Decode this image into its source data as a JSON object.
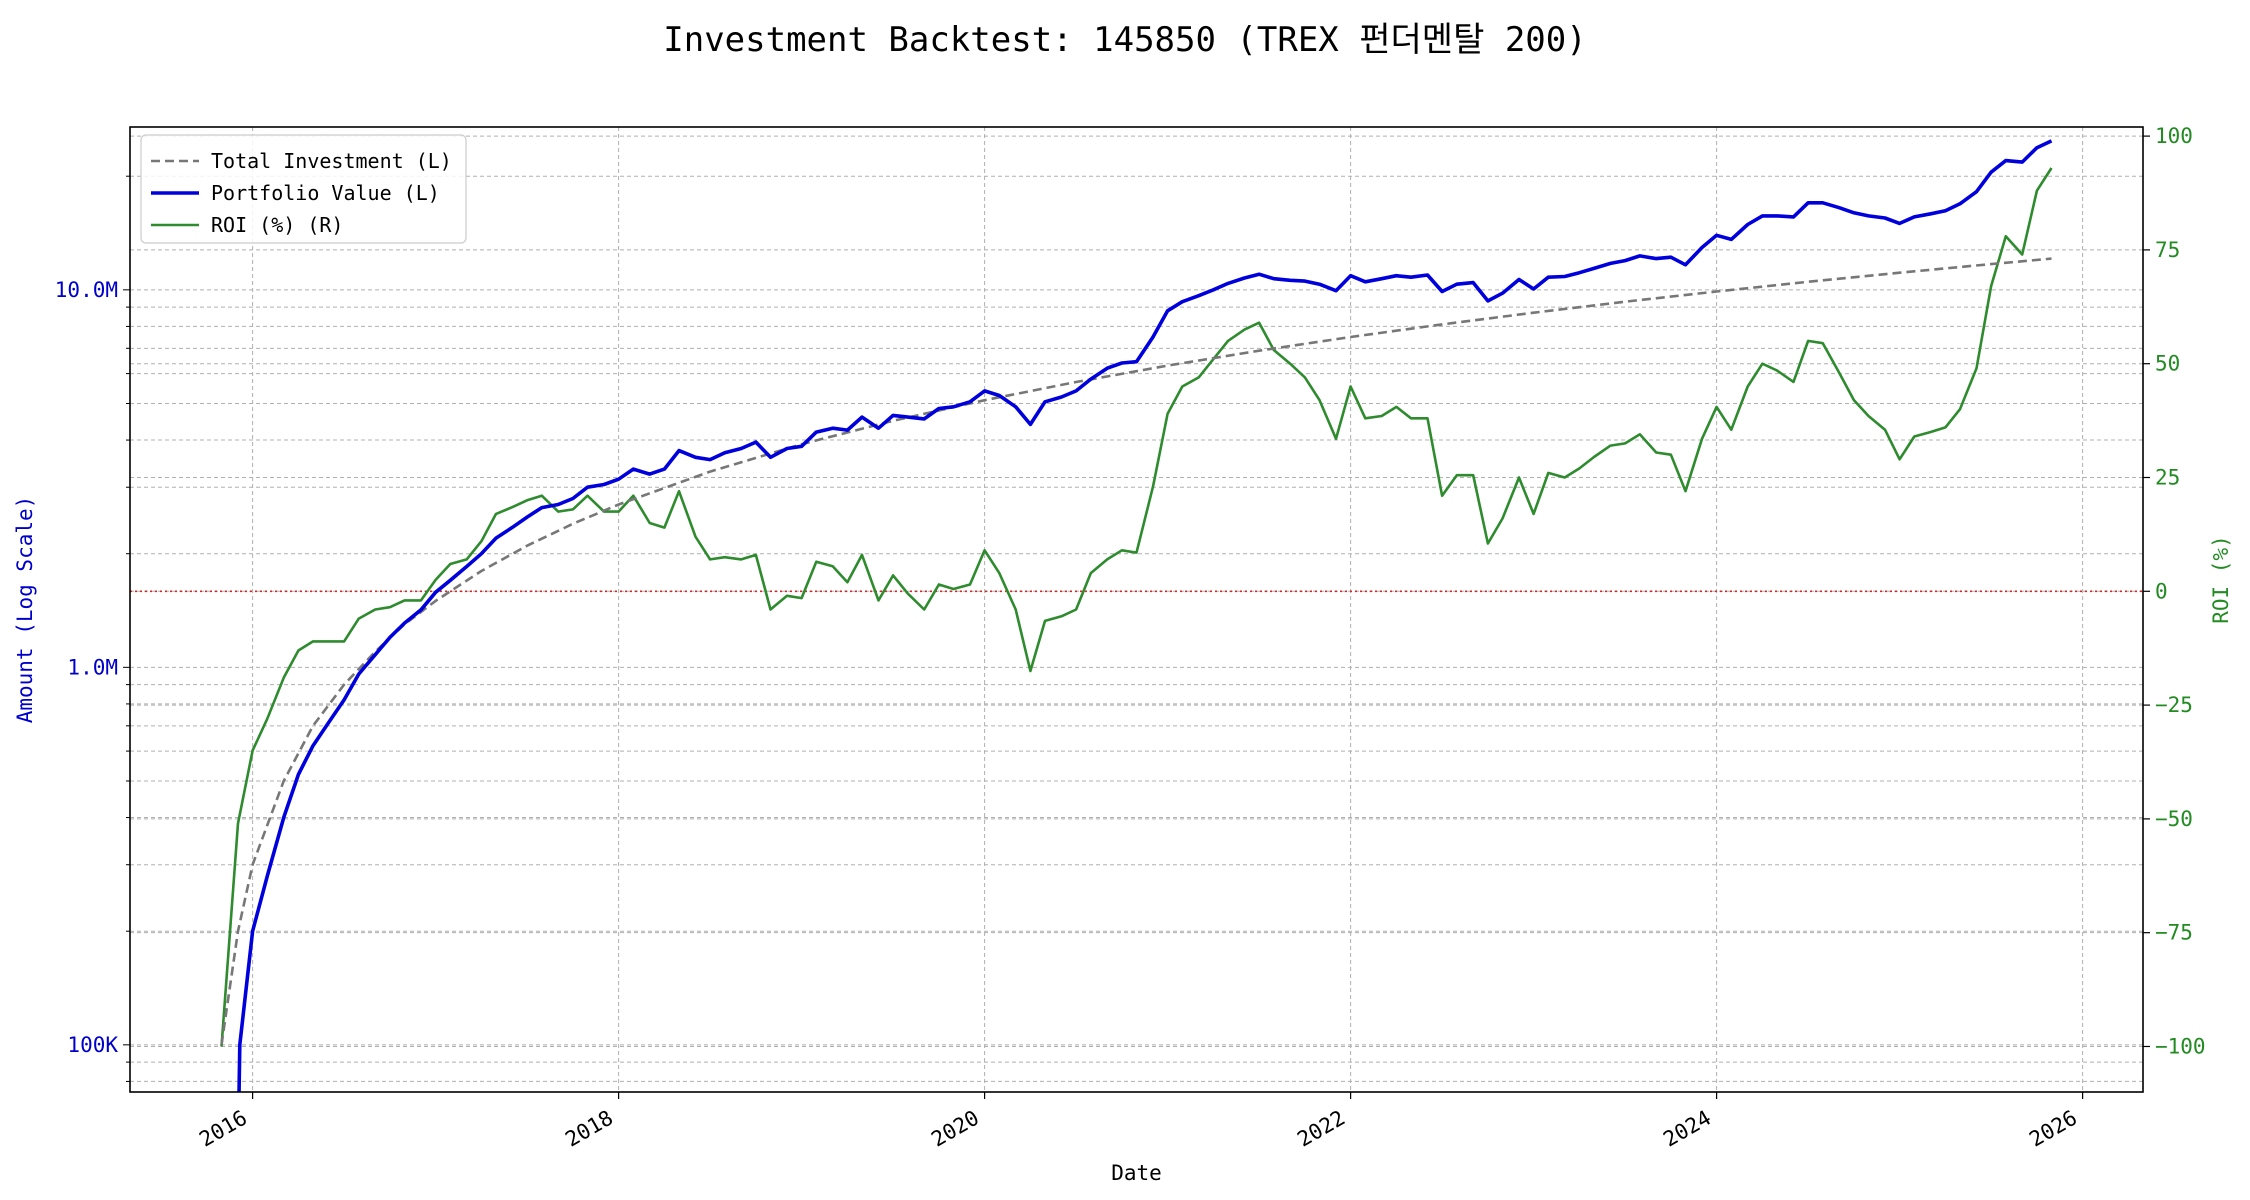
{
  "chart_data": {
    "type": "line",
    "title": "Investment Backtest: 145850 (TREX 펀더멘탈 200)",
    "xlabel": "Date",
    "ylabel_left": "Amount (Log Scale)",
    "ylabel_right": "ROI (%)",
    "x_ticks": [
      "2016",
      "2018",
      "2020",
      "2022",
      "2024",
      "2026"
    ],
    "y_left_ticks": [
      "100K",
      "1.0M",
      "10.0M"
    ],
    "y_right_ticks": [
      "100",
      "75",
      "50",
      "25",
      "0",
      "−25",
      "−50",
      "−75",
      "−100"
    ],
    "y_left_scale": "log",
    "y_left_lim": [
      75000,
      27000000
    ],
    "y_right_lim": [
      -110,
      102
    ],
    "x_lim": [
      2015.33,
      2026.33
    ],
    "grid": true,
    "legend": "top-left",
    "reference_line": {
      "axis": "right",
      "value": 0,
      "color": "#d62728",
      "style": "dotted"
    },
    "colors": {
      "total": "#777777",
      "portfolio": "#0000dd",
      "roi": "#2e8b2e",
      "left_axis": "#0000cc",
      "right_axis": "#228b22"
    },
    "series": [
      {
        "name": "Total Investment (L)",
        "axis": "left",
        "style": "dashed",
        "x": [
          2015.83,
          2015.92,
          2016.0,
          2016.17,
          2016.33,
          2016.5,
          2016.67,
          2016.83,
          2017.0,
          2017.25,
          2017.5,
          2017.75,
          2018.0,
          2018.5,
          2019.0,
          2019.5,
          2020.0,
          2020.5,
          2021.0,
          2021.5,
          2022.0,
          2022.5,
          2023.0,
          2023.5,
          2024.0,
          2024.5,
          2025.0,
          2025.5,
          2025.83
        ],
        "values": [
          100000,
          200000,
          300000,
          500000,
          700000,
          900000,
          1100000,
          1300000,
          1500000,
          1800000,
          2100000,
          2400000,
          2700000,
          3300000,
          3900000,
          4500000,
          5100000,
          5700000,
          6300000,
          6900000,
          7500000,
          8100000,
          8700000,
          9300000,
          9900000,
          10500000,
          11100000,
          11700000,
          12100000
        ]
      },
      {
        "name": "Portfolio Value (L)",
        "axis": "left",
        "style": "solid",
        "x": [
          2015.92,
          2015.93,
          2016.0,
          2016.08,
          2016.17,
          2016.25,
          2016.33,
          2016.42,
          2016.5,
          2016.58,
          2016.67,
          2016.75,
          2016.83,
          2016.92,
          2017.0,
          2017.08,
          2017.17,
          2017.25,
          2017.33,
          2017.42,
          2017.5,
          2017.58,
          2017.67,
          2017.75,
          2017.83,
          2017.92,
          2018.0,
          2018.08,
          2018.17,
          2018.25,
          2018.33,
          2018.42,
          2018.5,
          2018.58,
          2018.67,
          2018.75,
          2018.83,
          2018.92,
          2019.0,
          2019.08,
          2019.17,
          2019.25,
          2019.33,
          2019.42,
          2019.5,
          2019.58,
          2019.67,
          2019.75,
          2019.83,
          2019.92,
          2020.0,
          2020.08,
          2020.17,
          2020.25,
          2020.33,
          2020.42,
          2020.5,
          2020.58,
          2020.67,
          2020.75,
          2020.83,
          2020.92,
          2021.0,
          2021.08,
          2021.17,
          2021.25,
          2021.33,
          2021.42,
          2021.5,
          2021.58,
          2021.67,
          2021.75,
          2021.83,
          2021.92,
          2022.0,
          2022.08,
          2022.17,
          2022.25,
          2022.33,
          2022.42,
          2022.5,
          2022.58,
          2022.67,
          2022.75,
          2022.83,
          2022.92,
          2023.0,
          2023.08,
          2023.17,
          2023.25,
          2023.33,
          2023.42,
          2023.5,
          2023.58,
          2023.67,
          2023.75,
          2023.83,
          2023.92,
          2024.0,
          2024.08,
          2024.17,
          2024.25,
          2024.33,
          2024.42,
          2024.5,
          2024.58,
          2024.67,
          2024.75,
          2024.83,
          2024.92,
          2025.0,
          2025.08,
          2025.17,
          2025.25,
          2025.33,
          2025.42,
          2025.5,
          2025.58,
          2025.67,
          2025.75,
          2025.83
        ],
        "values": [
          50000,
          100000,
          200000,
          280000,
          400000,
          520000,
          620000,
          720000,
          820000,
          960000,
          1080000,
          1200000,
          1310000,
          1420000,
          1580000,
          1700000,
          1850000,
          2000000,
          2200000,
          2350000,
          2500000,
          2650000,
          2700000,
          2800000,
          3000000,
          3050000,
          3150000,
          3350000,
          3250000,
          3350000,
          3750000,
          3600000,
          3550000,
          3700000,
          3800000,
          3950000,
          3600000,
          3800000,
          3850000,
          4200000,
          4300000,
          4250000,
          4600000,
          4300000,
          4650000,
          4600000,
          4550000,
          4850000,
          4900000,
          5050000,
          5400000,
          5250000,
          4900000,
          4400000,
          5050000,
          5200000,
          5400000,
          5800000,
          6200000,
          6400000,
          6450000,
          7500000,
          8800000,
          9300000,
          9650000,
          10000000,
          10400000,
          10750000,
          11000000,
          10700000,
          10600000,
          10550000,
          10350000,
          9950000,
          10900000,
          10500000,
          10700000,
          10900000,
          10800000,
          10950000,
          9900000,
          10350000,
          10450000,
          9350000,
          9800000,
          10650000,
          10050000,
          10800000,
          10850000,
          11100000,
          11400000,
          11750000,
          11950000,
          12300000,
          12100000,
          12200000,
          11650000,
          12950000,
          13950000,
          13600000,
          14900000,
          15700000,
          15700000,
          15600000,
          17000000,
          17000000,
          16500000,
          16000000,
          15700000,
          15500000,
          15000000,
          15600000,
          15900000,
          16200000,
          16900000,
          18200000,
          20500000,
          22000000,
          21800000,
          23800000,
          24800000
        ]
      },
      {
        "name": "ROI (%) (R)",
        "axis": "right",
        "style": "solid",
        "x": [
          2015.83,
          2015.92,
          2016.0,
          2016.08,
          2016.17,
          2016.25,
          2016.33,
          2016.42,
          2016.5,
          2016.58,
          2016.67,
          2016.75,
          2016.83,
          2016.92,
          2017.0,
          2017.08,
          2017.17,
          2017.25,
          2017.33,
          2017.42,
          2017.5,
          2017.58,
          2017.67,
          2017.75,
          2017.83,
          2017.92,
          2018.0,
          2018.08,
          2018.17,
          2018.25,
          2018.33,
          2018.42,
          2018.5,
          2018.58,
          2018.67,
          2018.75,
          2018.83,
          2018.92,
          2019.0,
          2019.08,
          2019.17,
          2019.25,
          2019.33,
          2019.42,
          2019.5,
          2019.58,
          2019.67,
          2019.75,
          2019.83,
          2019.92,
          2020.0,
          2020.08,
          2020.17,
          2020.25,
          2020.33,
          2020.42,
          2020.5,
          2020.58,
          2020.67,
          2020.75,
          2020.83,
          2020.92,
          2021.0,
          2021.08,
          2021.17,
          2021.25,
          2021.33,
          2021.42,
          2021.5,
          2021.58,
          2021.67,
          2021.75,
          2021.83,
          2021.92,
          2022.0,
          2022.08,
          2022.17,
          2022.25,
          2022.33,
          2022.42,
          2022.5,
          2022.58,
          2022.67,
          2022.75,
          2022.83,
          2022.92,
          2023.0,
          2023.08,
          2023.17,
          2023.25,
          2023.33,
          2023.42,
          2023.5,
          2023.58,
          2023.67,
          2023.75,
          2023.83,
          2023.92,
          2024.0,
          2024.08,
          2024.17,
          2024.25,
          2024.33,
          2024.42,
          2024.5,
          2024.58,
          2024.67,
          2024.75,
          2024.83,
          2024.92,
          2025.0,
          2025.08,
          2025.17,
          2025.25,
          2025.33,
          2025.42,
          2025.5,
          2025.58,
          2025.67,
          2025.75,
          2025.83
        ],
        "values": [
          -100,
          -51,
          -35,
          -28,
          -19,
          -13,
          -11,
          -11,
          -11,
          -6,
          -4,
          -3.5,
          -2,
          -2,
          2.5,
          6,
          7,
          11,
          17,
          18.5,
          20,
          21,
          17.5,
          18,
          21,
          17.5,
          17.5,
          21,
          15,
          14,
          22,
          12,
          7,
          7.5,
          7,
          8,
          -4,
          -1,
          -1.5,
          6.5,
          5.5,
          2,
          8,
          -2,
          3.5,
          -0.5,
          -4,
          1.5,
          0.5,
          1.5,
          9,
          4,
          -4,
          -17.5,
          -6.5,
          -5.5,
          -4,
          4,
          7,
          9,
          8.5,
          23,
          39,
          45,
          47,
          51,
          55,
          57.5,
          59,
          53,
          50,
          47,
          42,
          33.5,
          45,
          38,
          38.5,
          40.5,
          38,
          38,
          21,
          25.5,
          25.5,
          10.5,
          16,
          25,
          17,
          26,
          25,
          27,
          29.5,
          32,
          32.5,
          34.5,
          30.5,
          30,
          22,
          33.5,
          40.5,
          35.5,
          45,
          50,
          48.5,
          46,
          55,
          54.5,
          48,
          42,
          38.5,
          35.5,
          29,
          34,
          35,
          36,
          40,
          49,
          67,
          78,
          74,
          88,
          93
        ]
      }
    ]
  }
}
